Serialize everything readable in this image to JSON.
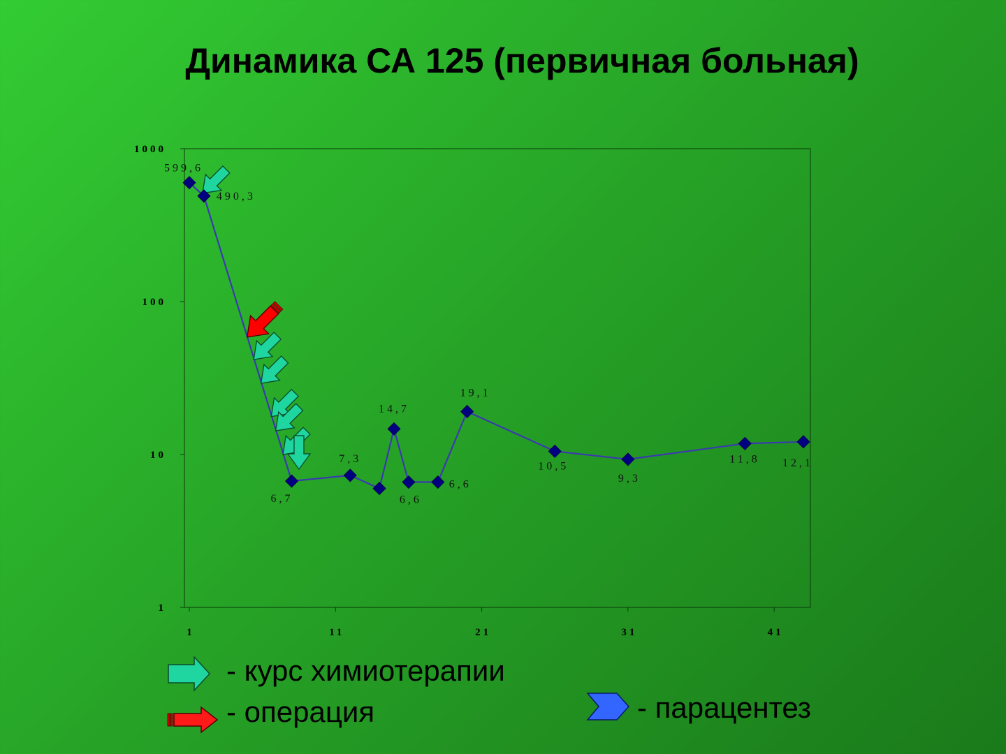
{
  "title": "Динамика СА 125 (первичная больная)",
  "chart_data": {
    "type": "line",
    "title": "Динамика СА 125 (первичная больная)",
    "yscale": "log",
    "ylim": [
      1,
      1000
    ],
    "xlim": [
      1,
      43
    ],
    "y_ticks": [
      1,
      10,
      100,
      1000
    ],
    "y_tick_labels": [
      "1",
      "10",
      "100",
      "1000"
    ],
    "x_ticks": [
      1,
      11,
      21,
      31,
      41
    ],
    "x_tick_labels": [
      "1",
      "11",
      "21",
      "31",
      "41"
    ],
    "grid": false,
    "series": [
      {
        "color": "#3a3ab0",
        "marker_color": "#000080",
        "points": [
          {
            "x": 1,
            "y": 599.6,
            "label": "599,6"
          },
          {
            "x": 2,
            "y": 490.3,
            "label": "490,3"
          },
          {
            "x": 8,
            "y": 6.7,
            "label": "6,7"
          },
          {
            "x": 12,
            "y": 7.3,
            "label": "7,3"
          },
          {
            "x": 14,
            "y": 6.0,
            "label": ""
          },
          {
            "x": 15,
            "y": 14.7,
            "label": "14,7"
          },
          {
            "x": 16,
            "y": 6.6,
            "label": "6,6"
          },
          {
            "x": 18,
            "y": 6.6,
            "label": "6,6"
          },
          {
            "x": 20,
            "y": 19.1,
            "label": "19,1"
          },
          {
            "x": 26,
            "y": 10.5,
            "label": "10,5"
          },
          {
            "x": 31,
            "y": 9.3,
            "label": "9,3"
          },
          {
            "x": 39,
            "y": 11.8,
            "label": "11,8"
          },
          {
            "x": 43,
            "y": 12.1,
            "label": "12,1"
          }
        ]
      }
    ],
    "annotations": [
      {
        "type": "chemotherapy",
        "icon": "teal-arrow-icon",
        "color": "#1fd6a0",
        "at": [
          2,
          5.5,
          6,
          6.7,
          7,
          7.5,
          8.5
        ]
      },
      {
        "type": "operation",
        "icon": "red-arrow-icon",
        "color": "#ff0000",
        "at": [
          5
        ]
      }
    ]
  },
  "legend": {
    "chemo": {
      "label": "- курс химиотерапии",
      "icon": "teal-arrow-icon",
      "color": "#1fd6a0"
    },
    "operation": {
      "label": "- операция",
      "icon": "red-arrow-icon",
      "color": "#ff1a1a"
    },
    "paracentesis": {
      "label": "- парацентез",
      "icon": "blue-chevron-icon",
      "color": "#3366ff"
    }
  }
}
